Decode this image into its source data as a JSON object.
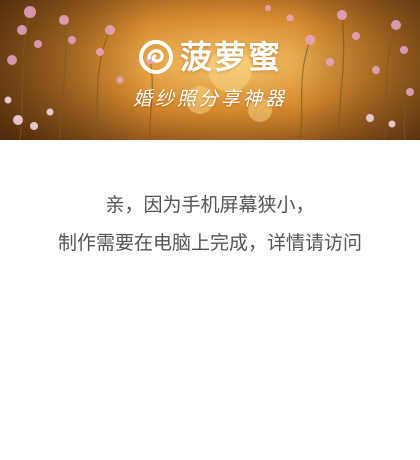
{
  "brand": {
    "logo_text": "菠萝蜜",
    "slogan": "婚纱照分享神器"
  },
  "notice": {
    "line1": "亲，因为手机屏幕狭小，",
    "line2": "制作需要在电脑上完成，详情请访问"
  },
  "icons": {
    "logo": "swirl-circle-logo-icon"
  },
  "colors": {
    "banner_warm": "#d68a2e",
    "banner_dark": "#5a3512",
    "flower_pink": "#e8a6c9",
    "text_gray": "#555555"
  }
}
